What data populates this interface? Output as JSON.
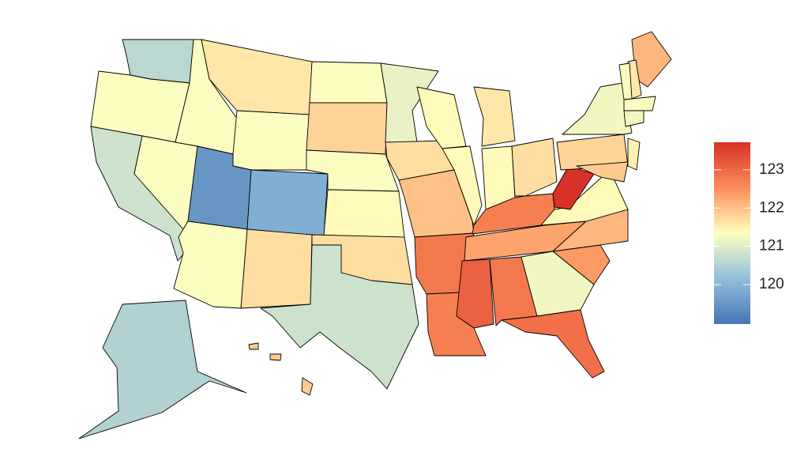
{
  "chart_data": {
    "type": "choropleth",
    "colors": [
      "#4575b4",
      "#91bfdb",
      "#ffffbf",
      "#fc8d59",
      "#d73027"
    ],
    "clim": [
      118.97,
      123.72
    ],
    "cticks": [
      120,
      121,
      122,
      123
    ],
    "values": [
      120.6,
      121.3,
      120.8,
      121.3,
      121.3,
      121.6,
      121.3,
      119.5,
      119.9,
      121.3,
      121.7,
      121.3,
      121.8,
      121.3,
      121.4,
      121.7,
      120.8,
      121.1,
      121.7,
      122.0,
      122.8,
      122.7,
      121.4,
      121.4,
      121.6,
      121.4,
      121.7,
      122.7,
      122.3,
      123.1,
      122.8,
      121.2,
      122.9,
      122.4,
      122.1,
      121.4,
      123.7,
      121.8,
      121.2,
      122.1,
      121.6,
      121.3,
      121.3,
      121.2,
      121.5,
      121.9,
      120.5,
      121.9,
      121.9,
      121.9
    ]
  }
}
